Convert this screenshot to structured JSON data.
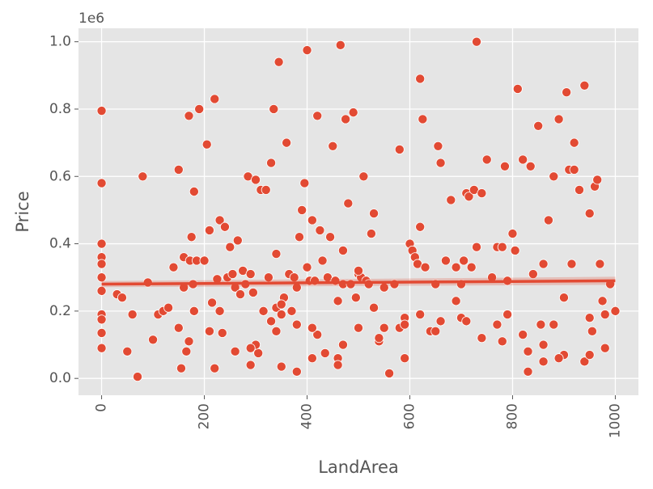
{
  "chart_data": {
    "type": "scatter",
    "title": "",
    "xlabel": "LandArea",
    "ylabel": "Price",
    "xlim": [
      -45,
      1045
    ],
    "ylim": [
      -50000,
      1040000
    ],
    "y_offset_text": "1e6",
    "x_ticks": [
      {
        "value": 0,
        "label": "0"
      },
      {
        "value": 200,
        "label": "200"
      },
      {
        "value": 400,
        "label": "400"
      },
      {
        "value": 600,
        "label": "600"
      },
      {
        "value": 800,
        "label": "800"
      },
      {
        "value": 1000,
        "label": "1000"
      }
    ],
    "y_ticks": [
      {
        "value": 0,
        "label": "0.0"
      },
      {
        "value": 200000,
        "label": "0.2"
      },
      {
        "value": 400000,
        "label": "0.4"
      },
      {
        "value": 600000,
        "label": "0.6"
      },
      {
        "value": 800000,
        "label": "0.8"
      },
      {
        "value": 1000000,
        "label": "1.0"
      }
    ],
    "grid": true,
    "background": "#e5e5e5",
    "point_color": "#e24a33",
    "regression_line": {
      "x": [
        0,
        1000
      ],
      "y": [
        280000,
        290000
      ],
      "color": "#e24a33"
    },
    "x": [
      0,
      0,
      0,
      0,
      0,
      0,
      0,
      0,
      0,
      0,
      0,
      30,
      40,
      50,
      60,
      70,
      80,
      90,
      100,
      110,
      120,
      130,
      140,
      150,
      155,
      160,
      165,
      170,
      172,
      175,
      178,
      180,
      185,
      190,
      200,
      205,
      210,
      215,
      220,
      225,
      230,
      235,
      240,
      245,
      250,
      255,
      260,
      265,
      270,
      275,
      280,
      285,
      290,
      295,
      300,
      305,
      310,
      315,
      320,
      325,
      330,
      335,
      340,
      345,
      350,
      355,
      360,
      365,
      370,
      375,
      380,
      385,
      390,
      395,
      400,
      405,
      410,
      415,
      420,
      425,
      430,
      435,
      440,
      445,
      450,
      455,
      460,
      465,
      470,
      475,
      480,
      485,
      490,
      495,
      500,
      505,
      510,
      515,
      520,
      525,
      530,
      540,
      550,
      560,
      570,
      580,
      590,
      600,
      605,
      610,
      615,
      620,
      625,
      630,
      640,
      650,
      655,
      660,
      670,
      680,
      690,
      700,
      705,
      710,
      715,
      720,
      725,
      730,
      740,
      750,
      760,
      770,
      780,
      785,
      790,
      800,
      805,
      810,
      820,
      830,
      835,
      840,
      850,
      855,
      860,
      870,
      880,
      890,
      900,
      905,
      910,
      915,
      920,
      930,
      940,
      950,
      955,
      960,
      965,
      970,
      975,
      980,
      990,
      1000,
      150,
      180,
      210,
      260,
      300,
      340,
      380,
      420,
      460,
      500,
      540,
      580,
      620,
      660,
      700,
      740,
      780,
      820,
      860,
      900,
      940,
      980,
      170,
      230,
      290,
      350,
      410,
      470,
      530,
      590,
      650,
      710,
      770,
      830,
      890,
      950,
      340,
      470,
      400,
      730,
      620,
      500,
      810,
      920,
      860,
      950,
      220,
      460,
      880,
      330,
      180,
      380,
      590,
      290,
      350,
      410,
      160,
      550,
      740,
      790,
      690
    ],
    "y": [
      795000,
      580000,
      400000,
      360000,
      340000,
      300000,
      260000,
      190000,
      175000,
      135000,
      90000,
      250000,
      240000,
      80000,
      190000,
      5000,
      600000,
      285000,
      115000,
      190000,
      200000,
      210000,
      330000,
      620000,
      30000,
      360000,
      80000,
      780000,
      350000,
      420000,
      280000,
      555000,
      350000,
      800000,
      350000,
      695000,
      440000,
      225000,
      830000,
      295000,
      470000,
      135000,
      450000,
      300000,
      390000,
      310000,
      270000,
      410000,
      250000,
      320000,
      280000,
      600000,
      310000,
      255000,
      590000,
      75000,
      560000,
      200000,
      560000,
      300000,
      640000,
      800000,
      210000,
      940000,
      190000,
      240000,
      700000,
      310000,
      200000,
      300000,
      270000,
      420000,
      500000,
      580000,
      975000,
      290000,
      470000,
      290000,
      780000,
      440000,
      350000,
      75000,
      300000,
      420000,
      690000,
      290000,
      230000,
      990000,
      280000,
      770000,
      520000,
      280000,
      790000,
      240000,
      310000,
      300000,
      600000,
      290000,
      280000,
      430000,
      490000,
      110000,
      270000,
      15000,
      280000,
      680000,
      180000,
      400000,
      380000,
      360000,
      340000,
      890000,
      770000,
      330000,
      140000,
      280000,
      690000,
      640000,
      350000,
      530000,
      330000,
      280000,
      350000,
      550000,
      540000,
      330000,
      560000,
      1000000,
      550000,
      650000,
      300000,
      390000,
      390000,
      630000,
      290000,
      430000,
      380000,
      860000,
      650000,
      20000,
      630000,
      310000,
      750000,
      160000,
      340000,
      470000,
      600000,
      770000,
      240000,
      850000,
      620000,
      340000,
      700000,
      560000,
      870000,
      490000,
      140000,
      570000,
      590000,
      340000,
      230000,
      190000,
      280000,
      200000,
      150000,
      200000,
      140000,
      80000,
      100000,
      140000,
      160000,
      130000,
      60000,
      150000,
      120000,
      150000,
      190000,
      170000,
      180000,
      120000,
      110000,
      130000,
      100000,
      70000,
      50000,
      90000,
      110000,
      200000,
      90000,
      220000,
      150000,
      100000,
      210000,
      160000,
      140000,
      170000,
      160000,
      80000,
      60000,
      180000,
      370000,
      380000,
      330000,
      390000,
      450000,
      320000,
      860000,
      620000,
      50000,
      70000,
      30000,
      40000,
      160000,
      170000,
      200000,
      20000,
      60000,
      40000,
      35000,
      60000,
      270000,
      150000,
      120000,
      190000,
      230000
    ]
  }
}
